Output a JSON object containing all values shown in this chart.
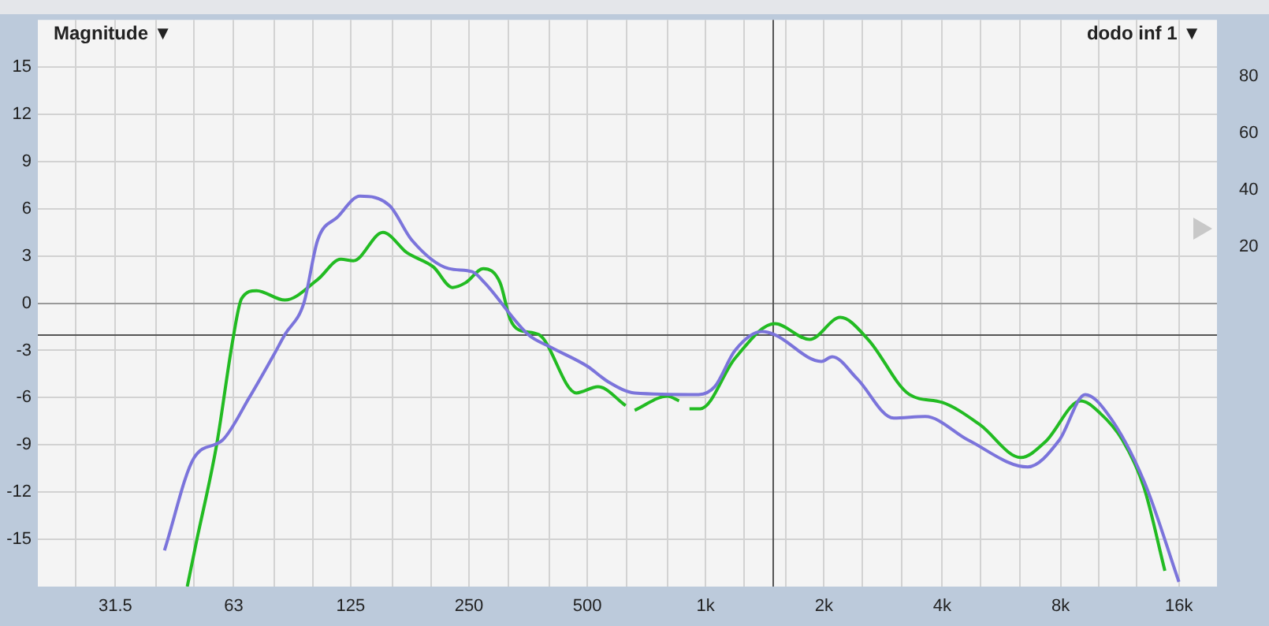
{
  "chart_data": {
    "type": "line",
    "ylabel": "Magnitude ▼",
    "y2label": "dodo inf 1 ▼",
    "log": "x",
    "grid": true,
    "legend": false,
    "marker": "none",
    "line_style": "solid",
    "xlim": [
      20,
      20000
    ],
    "ylim": [
      -18,
      18
    ],
    "y2lim": [
      -100,
      100
    ],
    "xticks": [
      {
        "value": 25,
        "label": null
      },
      {
        "value": 31.5,
        "label": "31.5"
      },
      {
        "value": 40,
        "label": null
      },
      {
        "value": 50,
        "label": null
      },
      {
        "value": 63,
        "label": "63"
      },
      {
        "value": 80,
        "label": null
      },
      {
        "value": 100,
        "label": null
      },
      {
        "value": 125,
        "label": "125"
      },
      {
        "value": 160,
        "label": null
      },
      {
        "value": 200,
        "label": null
      },
      {
        "value": 250,
        "label": "250"
      },
      {
        "value": 315,
        "label": null
      },
      {
        "value": 400,
        "label": null
      },
      {
        "value": 500,
        "label": "500"
      },
      {
        "value": 630,
        "label": null
      },
      {
        "value": 800,
        "label": null
      },
      {
        "value": 1000,
        "label": "1k"
      },
      {
        "value": 1250,
        "label": null
      },
      {
        "value": 1600,
        "label": null
      },
      {
        "value": 2000,
        "label": "2k"
      },
      {
        "value": 2500,
        "label": null
      },
      {
        "value": 3150,
        "label": null
      },
      {
        "value": 4000,
        "label": "4k"
      },
      {
        "value": 5000,
        "label": null
      },
      {
        "value": 6300,
        "label": null
      },
      {
        "value": 8000,
        "label": "8k"
      },
      {
        "value": 10000,
        "label": null
      },
      {
        "value": 12500,
        "label": null
      },
      {
        "value": 16000,
        "label": "16k"
      }
    ],
    "yticks": [
      -15,
      -12,
      -9,
      -6,
      -3,
      0,
      3,
      6,
      9,
      12,
      15
    ],
    "y2ticks": [
      20,
      40,
      60,
      80
    ],
    "ref_lines": [
      {
        "axis": "y",
        "value": 0,
        "color": "#999999"
      },
      {
        "axis": "y",
        "value": -2,
        "color": "#555555"
      },
      {
        "axis": "x",
        "value": 1480,
        "color": "#555555"
      }
    ],
    "series": [
      {
        "color": "#7b74db",
        "x": [
          42,
          50,
          59,
          69,
          80,
          85,
          95,
          103,
          116,
          132,
          157,
          179,
          222,
          255,
          274,
          354,
          404,
          500,
          566,
          660,
          960,
          1055,
          1188,
          1392,
          1500,
          1970,
          2100,
          2430,
          3010,
          3620,
          4660,
          6600,
          7940,
          9240,
          10520,
          13040,
          16000
        ],
        "values": [
          -15.7,
          -9.8,
          -8.7,
          -6,
          -3.2,
          -2,
          0,
          4,
          5.5,
          6.8,
          6.2,
          4,
          2.2,
          2,
          1.3,
          -2,
          -2.8,
          -4,
          -5,
          -5.7,
          -5.8,
          -5.3,
          -3,
          -1.8,
          -2,
          -3.7,
          -3.4,
          -4.8,
          -7.3,
          -7.2,
          -8.7,
          -10.4,
          -8.7,
          -5.8,
          -7,
          -11.3,
          -17.7
        ]
      },
      {
        "color": "#22bb22",
        "x": [
          48,
          50.5,
          57,
          62.7,
          66,
          72,
          85,
          103,
          118,
          127,
          151,
          174,
          203,
          227,
          245,
          272,
          300,
          318,
          335,
          377,
          469,
          532,
          626,
          640,
          660,
          800,
          856,
          880,
          910,
          970,
          1188,
          1500,
          1840,
          2200,
          2590,
          3300,
          4000,
          4980,
          6340,
          7320,
          9000,
          10100,
          11500,
          13040,
          14740
        ],
        "values": [
          -18,
          -15.3,
          -9,
          -2.3,
          0.3,
          0.8,
          0.2,
          1.5,
          2.8,
          2.7,
          4.5,
          3.2,
          2.3,
          1,
          1.3,
          2.2,
          1.3,
          -1,
          -1.7,
          -2,
          -5.7,
          -5.3,
          -6.5,
          null,
          -6.8,
          -5.9,
          -6.2,
          null,
          -6.7,
          -6.7,
          -3.5,
          -1.3,
          -2.3,
          -0.9,
          -2.3,
          -5.8,
          -6.3,
          -7.7,
          -9.8,
          -8.8,
          -6.2,
          -7,
          -8.7,
          -11.7,
          -17
        ]
      }
    ]
  }
}
